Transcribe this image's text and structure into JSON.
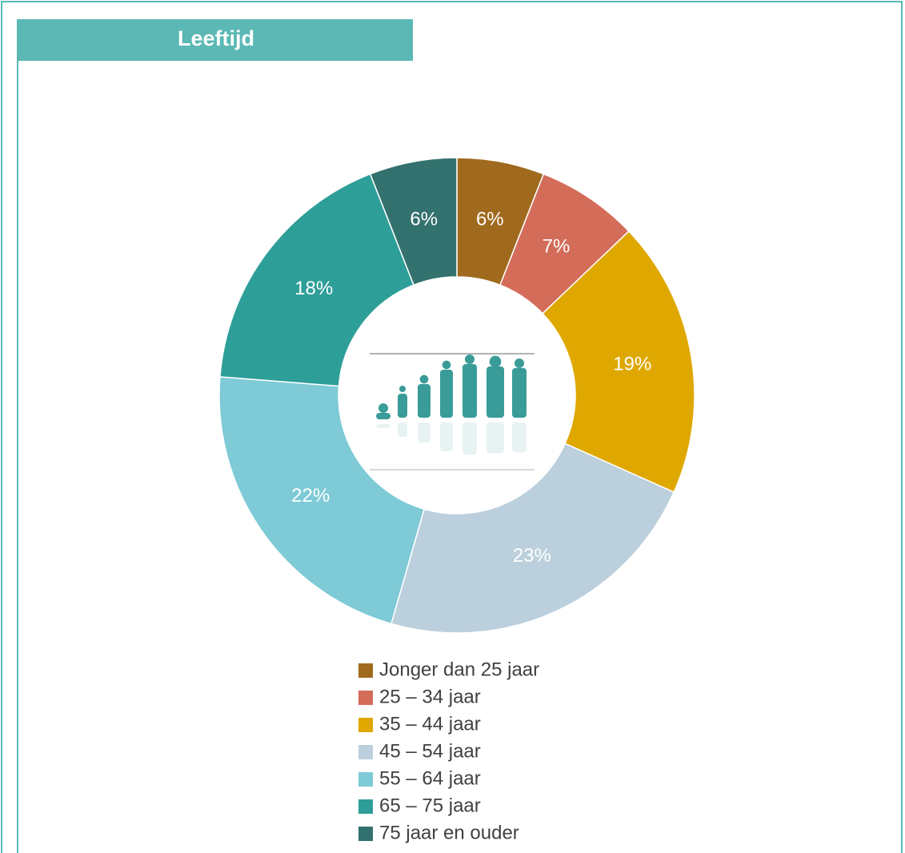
{
  "chart_data": {
    "type": "donut",
    "title": "Leeftijd",
    "categories": [
      "Jonger dan 25 jaar",
      "25 – 34 jaar",
      "35 – 44 jaar",
      "45 – 54 jaar",
      "55 – 64 jaar",
      "65 – 75 jaar",
      "75 jaar en ouder"
    ],
    "values": [
      6,
      7,
      19,
      23,
      22,
      18,
      6
    ],
    "value_labels": [
      "6%",
      "7%",
      "19%",
      "23%",
      "22%",
      "18%",
      "6%"
    ],
    "colors": [
      "#a06a1e",
      "#d46c5a",
      "#dfa800",
      "#bccfdc",
      "#7ecad6",
      "#2e9e98",
      "#33716e"
    ],
    "legend": "bottom"
  }
}
